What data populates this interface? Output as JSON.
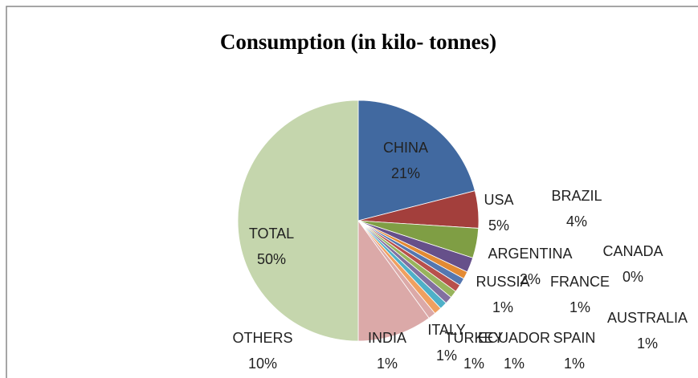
{
  "chart_data": {
    "type": "pie",
    "title": "Consumption (in kilo- tonnes)",
    "categories": [
      "CHINA",
      "USA",
      "BRAZIL",
      "ARGENTINA",
      "CANADA",
      "RUSSIA",
      "FRANCE",
      "AUSTRALIA",
      "SPAIN",
      "ECUADOR",
      "TURKEY",
      "ITALY",
      "INDIA",
      "OTHERS",
      "TOTAL"
    ],
    "values": [
      21,
      5,
      4,
      2,
      0,
      1,
      1,
      1,
      1,
      1,
      1,
      1,
      1,
      10,
      50
    ],
    "value_labels": [
      "21%",
      "5%",
      "4%",
      "2%",
      "0%",
      "1%",
      "1%",
      "1%",
      "1%",
      "1%",
      "1%",
      "1%",
      "1%",
      "10%",
      "50%"
    ],
    "colors": [
      "#4169a0",
      "#a33f3c",
      "#7f9e44",
      "#66508a",
      "#3d9ab3",
      "#e38a34",
      "#5577b0",
      "#b8504c",
      "#98b45c",
      "#8270a0",
      "#4fb0c8",
      "#f0a060",
      "#dba9a8",
      "#dba9a8",
      "#c5d6ad"
    ]
  }
}
